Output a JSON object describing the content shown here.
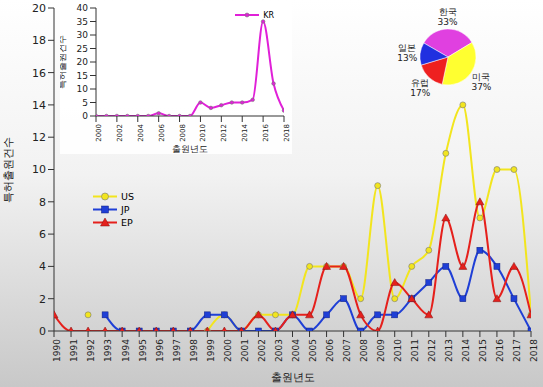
{
  "chart_data": [
    {
      "type": "line",
      "xlabel": "출원년도",
      "ylabel": "특허출원건수",
      "x": [
        1990,
        1991,
        1992,
        1993,
        1994,
        1995,
        1996,
        1997,
        1998,
        1999,
        2000,
        2001,
        2002,
        2003,
        2004,
        2005,
        2006,
        2007,
        2008,
        2009,
        2010,
        2011,
        2012,
        2013,
        2014,
        2015,
        2016,
        2017,
        2018
      ],
      "xlim": [
        1990,
        2018
      ],
      "xticks": [
        1990,
        1991,
        1992,
        1993,
        1994,
        1995,
        1996,
        1997,
        1998,
        1999,
        2000,
        2001,
        2002,
        2003,
        2004,
        2005,
        2006,
        2007,
        2008,
        2009,
        2010,
        2011,
        2012,
        2013,
        2014,
        2015,
        2016,
        2017,
        2018
      ],
      "ylim": [
        0,
        20
      ],
      "yticks": [
        0,
        2,
        4,
        6,
        8,
        10,
        12,
        14,
        16,
        18,
        20
      ],
      "legend": "left",
      "series": [
        {
          "name": "US",
          "color": "#f2e51e",
          "marker": "circle",
          "values": [
            null,
            null,
            1,
            null,
            null,
            null,
            null,
            null,
            null,
            0,
            1,
            0,
            1,
            1,
            1,
            4,
            4,
            4,
            2,
            9,
            2,
            4,
            5,
            11,
            14,
            7,
            10,
            10,
            1
          ]
        },
        {
          "name": "JP",
          "color": "#1f3fd6",
          "marker": "square",
          "values": [
            null,
            null,
            null,
            1,
            0,
            0,
            0,
            0,
            0,
            1,
            1,
            0,
            0,
            0,
            1,
            0,
            1,
            2,
            0,
            1,
            1,
            2,
            3,
            4,
            2,
            5,
            4,
            2,
            0
          ]
        },
        {
          "name": "EP",
          "color": "#e5201c",
          "marker": "triangle",
          "values": [
            1,
            0,
            0,
            0,
            0,
            0,
            0,
            0,
            0,
            0,
            0,
            0,
            1,
            0,
            1,
            1,
            4,
            4,
            1,
            0,
            3,
            2,
            1,
            7,
            4,
            8,
            2,
            4,
            1
          ]
        }
      ]
    },
    {
      "type": "line",
      "xlabel": "출원년도",
      "ylabel": "특허출원건수",
      "x": [
        2000,
        2001,
        2002,
        2003,
        2004,
        2005,
        2006,
        2007,
        2008,
        2009,
        2010,
        2011,
        2012,
        2013,
        2014,
        2015,
        2016,
        2017,
        2018
      ],
      "xlim": [
        2000,
        2018
      ],
      "xticks": [
        2000,
        2002,
        2004,
        2006,
        2008,
        2010,
        2012,
        2014,
        2016,
        2018
      ],
      "ylim": [
        0,
        40
      ],
      "yticks": [
        0,
        5,
        10,
        15,
        20,
        25,
        30,
        35,
        40
      ],
      "legend": "right",
      "series": [
        {
          "name": "KR",
          "color": "#e020d8",
          "marker": "circle",
          "values": [
            0,
            0,
            0,
            0,
            0,
            0,
            1,
            0,
            0,
            0,
            5,
            3,
            4,
            5,
            5,
            6,
            35,
            12,
            2
          ]
        }
      ]
    },
    {
      "type": "pie",
      "categories": [
        "한국",
        "미국",
        "유럽",
        "일본"
      ],
      "values": [
        33,
        37,
        17,
        13
      ],
      "value_labels": [
        "33%",
        "37%",
        "17%",
        "13%"
      ],
      "colors": [
        "#e040e0",
        "#ffff30",
        "#ee2020",
        "#2030e0"
      ],
      "data_labels": true
    }
  ]
}
